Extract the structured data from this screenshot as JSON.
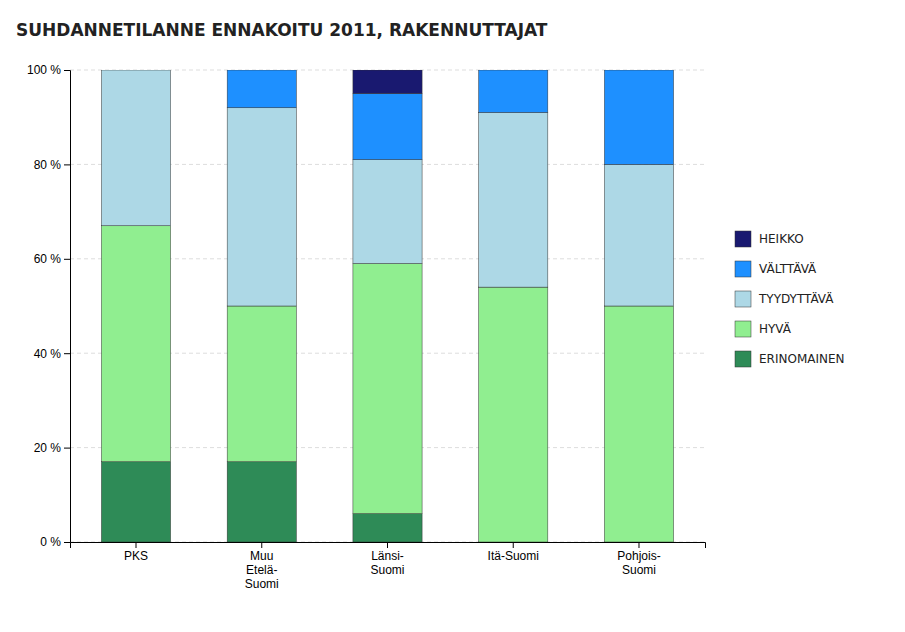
{
  "chart_data": {
    "type": "bar",
    "stacked": true,
    "title": "SUHDANNETILANNE ENNAKOITU 2011, RAKENNUTTAJAT",
    "categories": [
      "PKS",
      "Muu\nEtelä-\nSuomi",
      "Länsi-\nSuomi",
      "Itä-Suomi",
      "Pohjois-\nSuomi"
    ],
    "series": [
      {
        "name": "ERINOMAINEN",
        "color": "#2E8B57",
        "values": [
          17,
          17,
          6,
          0,
          0
        ]
      },
      {
        "name": "HYVÄ",
        "color": "#90EE90",
        "values": [
          50,
          33,
          53,
          54,
          50
        ]
      },
      {
        "name": "TYYDYTTÄVÄ",
        "color": "#ADD8E6",
        "values": [
          33,
          42,
          22,
          37,
          30
        ]
      },
      {
        "name": "VÄLTTÄVÄ",
        "color": "#1E90FF",
        "values": [
          0,
          8,
          14,
          9,
          20
        ]
      },
      {
        "name": "HEIKKO",
        "color": "#191970",
        "values": [
          0,
          0,
          5,
          0,
          0
        ]
      }
    ],
    "ylim": [
      0,
      100
    ],
    "yticks": [
      {
        "value": 0,
        "label": "0 %"
      },
      {
        "value": 20,
        "label": "20 %"
      },
      {
        "value": 40,
        "label": "40 %"
      },
      {
        "value": 60,
        "label": "60 %"
      },
      {
        "value": 80,
        "label": "80 %"
      },
      {
        "value": 100,
        "label": "100 %"
      }
    ],
    "grid": true,
    "legend": "right"
  }
}
